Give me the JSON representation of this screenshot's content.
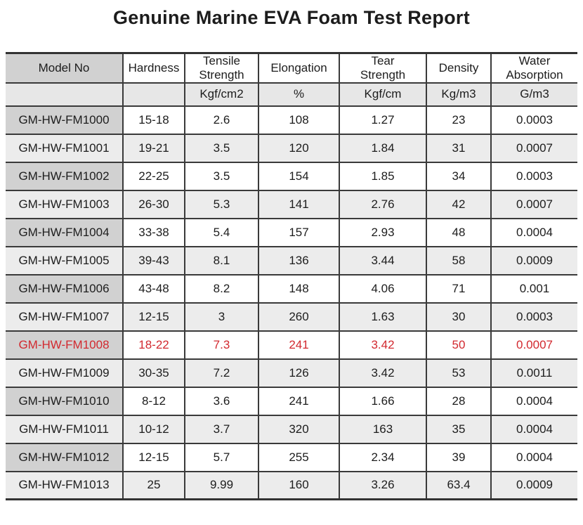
{
  "title": "Genuine Marine EVA Foam Test Report",
  "colors": {
    "highlight_text": "#d2292f",
    "border": "#3a3a3a",
    "model_cell_bg": "#d1d1d1",
    "alt_row_bg": "#ececec",
    "units_row_bg": "#e7e7e7"
  },
  "table": {
    "columns": [
      {
        "label": "Model No",
        "unit": ""
      },
      {
        "label": "Hardness",
        "unit": ""
      },
      {
        "label": "Tensile\nStrength",
        "unit": "Kgf/cm2"
      },
      {
        "label": "Elongation",
        "unit": "%"
      },
      {
        "label": "Tear\nStrength",
        "unit": "Kgf/cm"
      },
      {
        "label": "Density",
        "unit": "Kg/m3"
      },
      {
        "label": "Water\nAbsorption",
        "unit": "G/m3"
      }
    ],
    "highlight_row_index": 8,
    "highlighted_model": "GM-HW-FM1008",
    "rows": [
      [
        "GM-HW-FM1000",
        "15-18",
        "2.6",
        "108",
        "1.27",
        "23",
        "0.0003"
      ],
      [
        "GM-HW-FM1001",
        "19-21",
        "3.5",
        "120",
        "1.84",
        "31",
        "0.0007"
      ],
      [
        "GM-HW-FM1002",
        "22-25",
        "3.5",
        "154",
        "1.85",
        "34",
        "0.0003"
      ],
      [
        "GM-HW-FM1003",
        "26-30",
        "5.3",
        "141",
        "2.76",
        "42",
        "0.0007"
      ],
      [
        "GM-HW-FM1004",
        "33-38",
        "5.4",
        "157",
        "2.93",
        "48",
        "0.0004"
      ],
      [
        "GM-HW-FM1005",
        "39-43",
        "8.1",
        "136",
        "3.44",
        "58",
        "0.0009"
      ],
      [
        "GM-HW-FM1006",
        "43-48",
        "8.2",
        "148",
        "4.06",
        "71",
        "0.001"
      ],
      [
        "GM-HW-FM1007",
        "12-15",
        "3",
        "260",
        "1.63",
        "30",
        "0.0003"
      ],
      [
        "GM-HW-FM1008",
        "18-22",
        "7.3",
        "241",
        "3.42",
        "50",
        "0.0007"
      ],
      [
        "GM-HW-FM1009",
        "30-35",
        "7.2",
        "126",
        "3.42",
        "53",
        "0.0011"
      ],
      [
        "GM-HW-FM1010",
        "8-12",
        "3.6",
        "241",
        "1.66",
        "28",
        "0.0004"
      ],
      [
        "GM-HW-FM1011",
        "10-12",
        "3.7",
        "320",
        "163",
        "35",
        "0.0004"
      ],
      [
        "GM-HW-FM1012",
        "12-15",
        "5.7",
        "255",
        "2.34",
        "39",
        "0.0004"
      ],
      [
        "GM-HW-FM1013",
        "25",
        "9.99",
        "160",
        "3.26",
        "63.4",
        "0.0009"
      ]
    ]
  }
}
